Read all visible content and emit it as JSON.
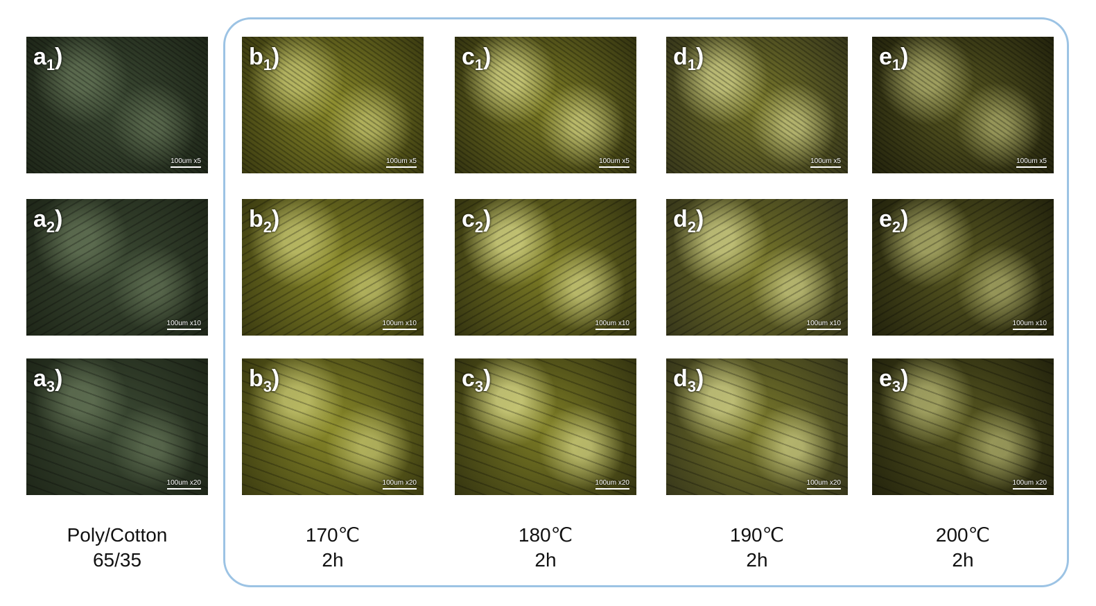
{
  "columns": [
    {
      "caption": [
        "Poly/Cotton",
        "65/35"
      ],
      "panels": [
        {
          "letter": "a",
          "sub": "1",
          "close": ")",
          "scale": "100um x5"
        },
        {
          "letter": "a",
          "sub": "2",
          "close": ")",
          "scale": "100um x10"
        },
        {
          "letter": "a",
          "sub": "3",
          "close": ")",
          "scale": "100um x20"
        }
      ]
    },
    {
      "caption": [
        "170℃",
        "2h"
      ],
      "panels": [
        {
          "letter": "b",
          "sub": "1",
          "close": ")",
          "scale": "100um x5"
        },
        {
          "letter": "b",
          "sub": "2",
          "close": ")",
          "scale": "100um x10"
        },
        {
          "letter": "b",
          "sub": "3",
          "close": ")",
          "scale": "100um x20"
        }
      ]
    },
    {
      "caption": [
        "180℃",
        "2h"
      ],
      "panels": [
        {
          "letter": "c",
          "sub": "1",
          "close": ")",
          "scale": "100um x5"
        },
        {
          "letter": "c",
          "sub": "2",
          "close": ")",
          "scale": "100um x10"
        },
        {
          "letter": "c",
          "sub": "3",
          "close": ")",
          "scale": "100um x20"
        }
      ]
    },
    {
      "caption": [
        "190℃",
        "2h"
      ],
      "panels": [
        {
          "letter": "d",
          "sub": "1",
          "close": ")",
          "scale": "100um x5"
        },
        {
          "letter": "d",
          "sub": "2",
          "close": ")",
          "scale": "100um x10"
        },
        {
          "letter": "d",
          "sub": "3",
          "close": ")",
          "scale": "100um x20"
        }
      ]
    },
    {
      "caption": [
        "200℃",
        "2h"
      ],
      "panels": [
        {
          "letter": "e",
          "sub": "1",
          "close": ")",
          "scale": "100um x5"
        },
        {
          "letter": "e",
          "sub": "2",
          "close": ")",
          "scale": "100um x10"
        },
        {
          "letter": "e",
          "sub": "3",
          "close": ")",
          "scale": "100um x20"
        }
      ]
    }
  ]
}
